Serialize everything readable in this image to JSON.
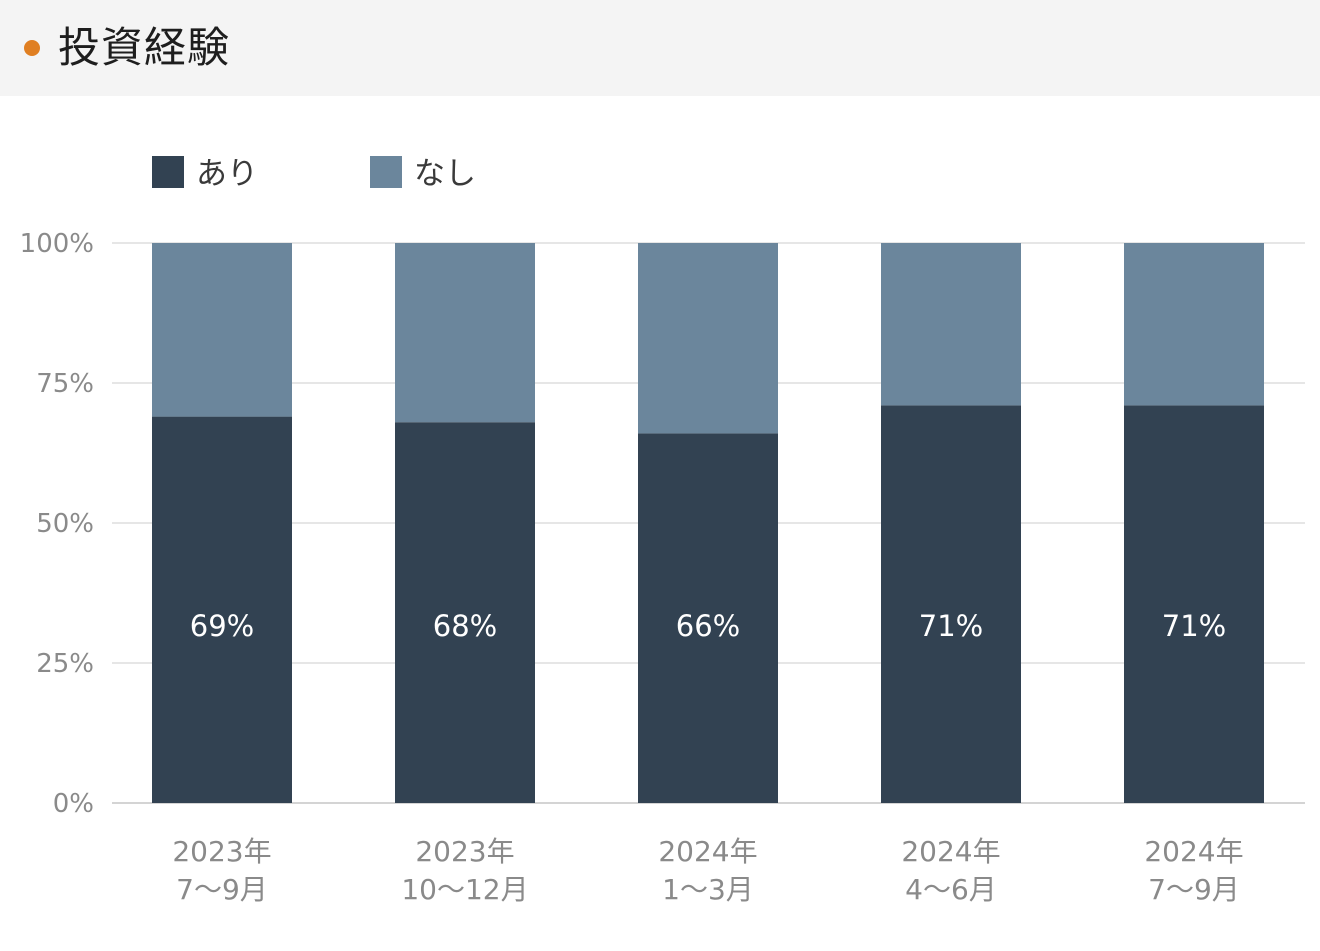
{
  "header": {
    "title": "投資経験",
    "dot_color": "#e07f22"
  },
  "chart_data": {
    "type": "bar",
    "stacked": true,
    "categories": [
      [
        "2023年",
        "7〜9月"
      ],
      [
        "2023年",
        "10〜12月"
      ],
      [
        "2024年",
        "1〜3月"
      ],
      [
        "2024年",
        "4〜6月"
      ],
      [
        "2024年",
        "7〜9月"
      ]
    ],
    "series": [
      {
        "name": "あり",
        "color": "#324252",
        "values": [
          69,
          68,
          66,
          71,
          71
        ],
        "data_labels": [
          "69%",
          "68%",
          "66%",
          "71%",
          "71%"
        ]
      },
      {
        "name": "なし",
        "color": "#6b869c",
        "values": [
          31,
          32,
          34,
          29,
          29
        ]
      }
    ],
    "ylim": [
      0,
      100
    ],
    "yticks": [
      {
        "value": 0,
        "label": "0%"
      },
      {
        "value": 25,
        "label": "25%"
      },
      {
        "value": 50,
        "label": "50%"
      },
      {
        "value": 75,
        "label": "75%"
      },
      {
        "value": 100,
        "label": "100%"
      }
    ],
    "grid": true,
    "legend_position": "top-left"
  }
}
